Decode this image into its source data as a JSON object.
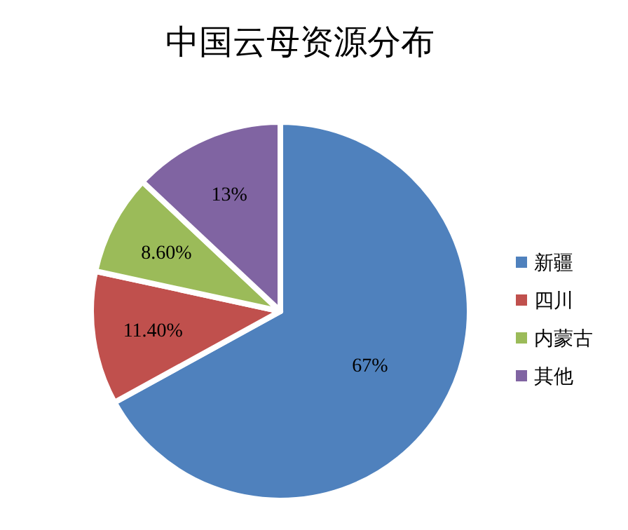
{
  "chart_data": {
    "type": "pie",
    "title": "中国云母资源分布",
    "categories": [
      "新疆",
      "四川",
      "内蒙古",
      "其他"
    ],
    "values": [
      67,
      11.4,
      8.6,
      13
    ],
    "value_labels": [
      "67%",
      "11.40%",
      "8.60%",
      "13%"
    ],
    "colors": [
      "#4f81bd",
      "#c0504d",
      "#9bbb59",
      "#8064a2"
    ],
    "legend": "right"
  }
}
